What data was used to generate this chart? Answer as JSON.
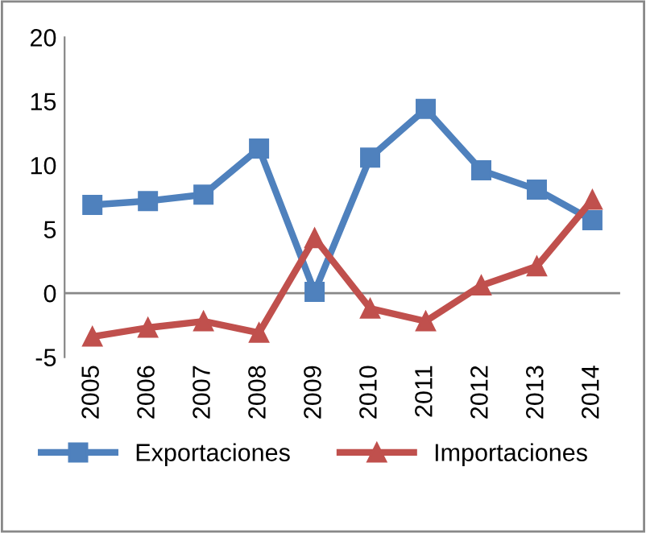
{
  "chart_data": {
    "type": "line",
    "categories": [
      "2005",
      "2006",
      "2007",
      "2008",
      "2009",
      "2010",
      "2011",
      "2012",
      "2013",
      "2014"
    ],
    "series": [
      {
        "name": "Exportaciones",
        "color": "#4f81bd",
        "marker": "square",
        "values": [
          6.9,
          7.2,
          7.7,
          11.3,
          0.1,
          10.6,
          14.4,
          9.6,
          8.1,
          5.7
        ]
      },
      {
        "name": "Importaciones",
        "color": "#c0504d",
        "marker": "triangle",
        "values": [
          -3.4,
          -2.7,
          -2.2,
          -3.1,
          4.3,
          -1.2,
          -2.2,
          0.6,
          2.1,
          7.3
        ]
      }
    ],
    "ref_lines": [
      {
        "axis": "y",
        "value": 0,
        "color": "#888888",
        "line_style": "solid"
      }
    ],
    "ylim": [
      -5,
      20
    ],
    "yticks": [
      -5,
      0,
      5,
      10,
      15,
      20
    ],
    "grid": false,
    "legend": "bottom",
    "line_style": "solid"
  }
}
